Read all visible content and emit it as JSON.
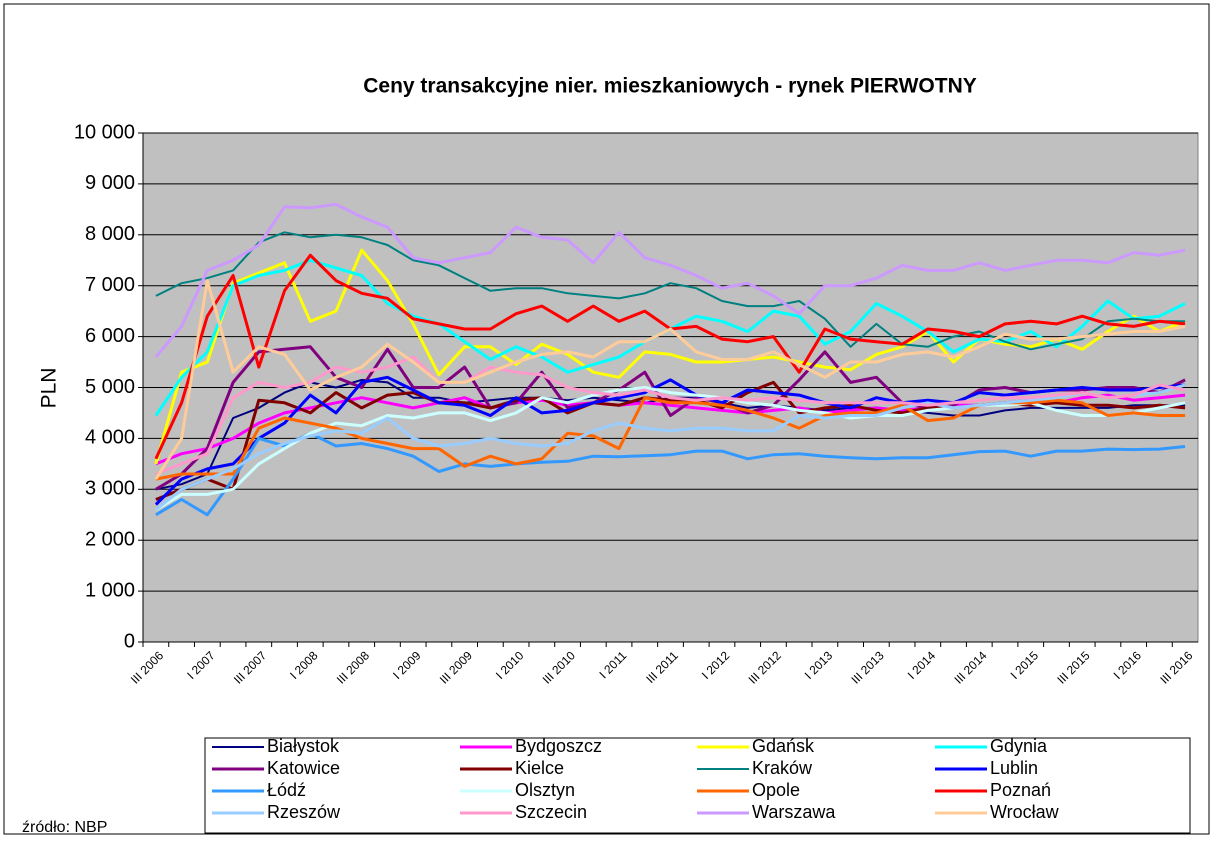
{
  "chart_data": {
    "type": "line",
    "title": "Ceny transakcyjne nier. mieszkaniowych - rynek PIERWOTNY",
    "y_label": "PLN",
    "source": "źródło: NBP",
    "categories": [
      "III 2006",
      null,
      "I 2007",
      null,
      "III 2007",
      null,
      "I 2008",
      null,
      "III 2008",
      null,
      "I 2009",
      null,
      "III 2009",
      null,
      "I 2010",
      null,
      "III 2010",
      null,
      "I 2011",
      null,
      "III 2011",
      null,
      "I 2012",
      null,
      "III 2012",
      null,
      "I 2013",
      null,
      "III 2013",
      null,
      "I 2014",
      null,
      "III 2014",
      null,
      "I 2015",
      null,
      "III 2015",
      null,
      "I 2016",
      null,
      "III 2016"
    ],
    "ylim": [
      0,
      10000
    ],
    "yticks": [
      0,
      {
        "value": 1000,
        "label": "1 000"
      },
      {
        "value": 2000,
        "label": "2 000"
      },
      {
        "value": 3000,
        "label": "3 000"
      },
      {
        "value": 4000,
        "label": "4 000"
      },
      {
        "value": 5000,
        "label": "5 000"
      },
      {
        "value": 6000,
        "label": "6 000"
      },
      {
        "value": 7000,
        "label": "7 000"
      },
      {
        "value": 8000,
        "label": "8 000"
      },
      {
        "value": 9000,
        "label": "9 000"
      },
      {
        "value": 10000,
        "label": "10 000"
      }
    ],
    "grid": true,
    "plot_background": "#c0c0c0",
    "series": [
      {
        "name": "Białystok",
        "color": "#000080",
        "width": 2,
        "values": [
          3000,
          3100,
          3300,
          4400,
          4600,
          4900,
          5100,
          5000,
          5150,
          5100,
          4800,
          4800,
          4700,
          4750,
          4800,
          4800,
          4750,
          4800,
          4750,
          4700,
          4800,
          4800,
          4700,
          4600,
          4650,
          4600,
          4550,
          4600,
          4600,
          4550,
          4500,
          4450,
          4450,
          4550,
          4600,
          4600,
          4600,
          4600,
          4650,
          4650,
          4650
        ]
      },
      {
        "name": "Bydgoszcz",
        "color": "#ff00ff",
        "width": 3,
        "values": [
          3500,
          3700,
          3800,
          4000,
          4300,
          4500,
          4600,
          4700,
          4800,
          4700,
          4600,
          4700,
          4800,
          4600,
          4700,
          4750,
          4650,
          4700,
          4650,
          4700,
          4650,
          4600,
          4550,
          4500,
          4550,
          4600,
          4500,
          4550,
          4600,
          4550,
          4600,
          4650,
          4650,
          4700,
          4750,
          4700,
          4800,
          4850,
          4750,
          4800,
          4850
        ]
      },
      {
        "name": "Gdańsk",
        "color": "#ffff00",
        "width": 3,
        "values": [
          3500,
          5300,
          5500,
          7050,
          7250,
          7450,
          6300,
          6500,
          7700,
          7100,
          6250,
          5250,
          5800,
          5800,
          5450,
          5850,
          5650,
          5300,
          5200,
          5700,
          5650,
          5500,
          5500,
          5550,
          5600,
          5500,
          5400,
          5350,
          5650,
          5800,
          6100,
          5500,
          5950,
          5850,
          5800,
          5950,
          5750,
          6100,
          6400,
          6100,
          6300
        ]
      },
      {
        "name": "Gdynia",
        "color": "#00ffff",
        "width": 3,
        "values": [
          4450,
          5200,
          5700,
          7000,
          7200,
          7300,
          7500,
          7350,
          7200,
          6650,
          6400,
          6250,
          5900,
          5550,
          5800,
          5600,
          5300,
          5450,
          5600,
          5900,
          6150,
          6400,
          6300,
          6100,
          6500,
          6400,
          5850,
          6100,
          6650,
          6400,
          6100,
          5700,
          5950,
          5900,
          6100,
          5800,
          6200,
          6700,
          6350,
          6400,
          6650
        ]
      },
      {
        "name": "Katowice",
        "color": "#800080",
        "width": 3,
        "values": [
          3000,
          3300,
          3800,
          5100,
          5700,
          5750,
          5800,
          5200,
          5000,
          5750,
          5000,
          5000,
          5400,
          4600,
          4700,
          5300,
          4600,
          4700,
          4950,
          5300,
          4450,
          4800,
          4700,
          4500,
          4650,
          5150,
          5700,
          5100,
          5200,
          4700,
          4600,
          4650,
          4950,
          5000,
          4900,
          4950,
          4950,
          5000,
          5000,
          4900,
          5150
        ]
      },
      {
        "name": "Kielce",
        "color": "#800000",
        "width": 3,
        "values": [
          2800,
          3000,
          3200,
          3000,
          4750,
          4700,
          4500,
          4900,
          4600,
          4850,
          4900,
          4700,
          4700,
          4600,
          4750,
          4800,
          4500,
          4700,
          4650,
          4800,
          4750,
          4750,
          4600,
          4900,
          5100,
          4500,
          4600,
          4650,
          4550,
          4500,
          4600,
          4600,
          4650,
          4700,
          4650,
          4700,
          4650,
          4650,
          4600,
          4650,
          4600
        ]
      },
      {
        "name": "Kraków",
        "color": "#008080",
        "width": 2,
        "values": [
          6800,
          7050,
          7150,
          7300,
          7850,
          8050,
          7950,
          8000,
          7950,
          7800,
          7500,
          7400,
          7150,
          6900,
          6950,
          6950,
          6850,
          6800,
          6750,
          6850,
          7050,
          6950,
          6700,
          6600,
          6600,
          6700,
          6350,
          5800,
          6250,
          5850,
          5800,
          6000,
          6100,
          5900,
          5750,
          5850,
          5950,
          6300,
          6350,
          6300,
          6300
        ]
      },
      {
        "name": "Lublin",
        "color": "#0000ff",
        "width": 3,
        "values": [
          2700,
          3200,
          3400,
          3500,
          4000,
          4300,
          4850,
          4500,
          5100,
          5200,
          4950,
          4700,
          4650,
          4450,
          4800,
          4500,
          4550,
          4700,
          4800,
          4900,
          5150,
          4850,
          4700,
          4950,
          4900,
          4850,
          4700,
          4600,
          4800,
          4700,
          4750,
          4700,
          4900,
          4850,
          4900,
          4950,
          5000,
          4950,
          4950,
          5000,
          5050
        ]
      },
      {
        "name": "Łódź",
        "color": "#3399ff",
        "width": 3,
        "values": [
          2500,
          2800,
          2500,
          3200,
          4000,
          3850,
          4100,
          3850,
          3900,
          3800,
          3650,
          3350,
          3500,
          3450,
          3500,
          3530,
          3550,
          3650,
          3640,
          3660,
          3680,
          3750,
          3750,
          3600,
          3680,
          3700,
          3650,
          3620,
          3600,
          3620,
          3620,
          3680,
          3740,
          3750,
          3650,
          3750,
          3750,
          3790,
          3780,
          3790,
          3840
        ]
      },
      {
        "name": "Olsztyn",
        "color": "#ccffff",
        "width": 3,
        "values": [
          2600,
          2900,
          2900,
          3000,
          3500,
          3800,
          4100,
          4300,
          4250,
          4450,
          4400,
          4500,
          4500,
          4350,
          4500,
          4800,
          4700,
          4850,
          4950,
          5000,
          4900,
          4850,
          4800,
          4700,
          4650,
          4550,
          4500,
          4400,
          4450,
          4450,
          4550,
          4600,
          4650,
          4650,
          4700,
          4550,
          4450,
          4450,
          4500,
          4600,
          4700
        ]
      },
      {
        "name": "Opole",
        "color": "#ff6600",
        "width": 3,
        "values": [
          3200,
          3300,
          3300,
          3300,
          4200,
          4400,
          4300,
          4200,
          4000,
          3900,
          3800,
          3800,
          3450,
          3650,
          3500,
          3600,
          4100,
          4050,
          3800,
          4800,
          4700,
          4700,
          4650,
          4550,
          4400,
          4200,
          4450,
          4500,
          4500,
          4650,
          4350,
          4400,
          4650,
          4700,
          4700,
          4750,
          4700,
          4450,
          4500,
          4450,
          4450
        ]
      },
      {
        "name": "Poznań",
        "color": "#ff0000",
        "width": 3,
        "values": [
          3600,
          4700,
          6400,
          7200,
          5400,
          6900,
          7600,
          7100,
          6850,
          6750,
          6350,
          6250,
          6150,
          6150,
          6450,
          6600,
          6300,
          6600,
          6300,
          6500,
          6150,
          6200,
          5950,
          5900,
          6000,
          5300,
          6150,
          5950,
          5900,
          5850,
          6150,
          6100,
          6000,
          6250,
          6300,
          6250,
          6400,
          6250,
          6200,
          6300,
          6250
        ]
      },
      {
        "name": "Rzeszów",
        "color": "#99ccff",
        "width": 3,
        "values": [
          2600,
          3000,
          3200,
          3400,
          3700,
          3900,
          4050,
          4150,
          4100,
          4400,
          4000,
          3850,
          3900,
          4000,
          3900,
          3850,
          3900,
          4150,
          4300,
          4200,
          4150,
          4200,
          4200,
          4150,
          4150,
          4450,
          4400,
          4450,
          4450,
          4600,
          4700,
          4600,
          4650,
          4700,
          4750,
          4800,
          4900,
          4800,
          4850,
          4900,
          5050
        ]
      },
      {
        "name": "Szczecin",
        "color": "#ff99cc",
        "width": 3,
        "values": [
          3300,
          3500,
          3700,
          4800,
          5100,
          5000,
          5100,
          5400,
          5300,
          5400,
          5600,
          5100,
          5100,
          5400,
          5300,
          5250,
          5000,
          4900,
          4850,
          4950,
          4800,
          4750,
          4800,
          4750,
          4800,
          4750,
          4700,
          4700,
          4700,
          4700,
          4650,
          4700,
          4750,
          4800,
          4800,
          4850,
          4900,
          4800,
          4850,
          5050,
          4950
        ]
      },
      {
        "name": "Warszawa",
        "color": "#cc99ff",
        "width": 3,
        "values": [
          5600,
          6200,
          7300,
          7500,
          7800,
          8550,
          8530,
          8600,
          8350,
          8150,
          7550,
          7450,
          7550,
          7650,
          8150,
          7950,
          7900,
          7450,
          8050,
          7550,
          7400,
          7200,
          6950,
          7050,
          6800,
          6450,
          7000,
          7000,
          7150,
          7400,
          7300,
          7300,
          7450,
          7300,
          7400,
          7500,
          7500,
          7450,
          7650,
          7600,
          7700
        ]
      },
      {
        "name": "Wrocław",
        "color": "#ffcc99",
        "width": 3,
        "values": [
          3200,
          4000,
          7100,
          5300,
          5800,
          5650,
          4950,
          5200,
          5400,
          5850,
          5500,
          5100,
          5100,
          5300,
          5500,
          5650,
          5700,
          5600,
          5900,
          5900,
          6150,
          5700,
          5550,
          5550,
          5700,
          5450,
          5200,
          5500,
          5500,
          5650,
          5700,
          5600,
          5800,
          6050,
          5950,
          5950,
          6000,
          6050,
          6100,
          6100,
          6200
        ]
      }
    ]
  }
}
